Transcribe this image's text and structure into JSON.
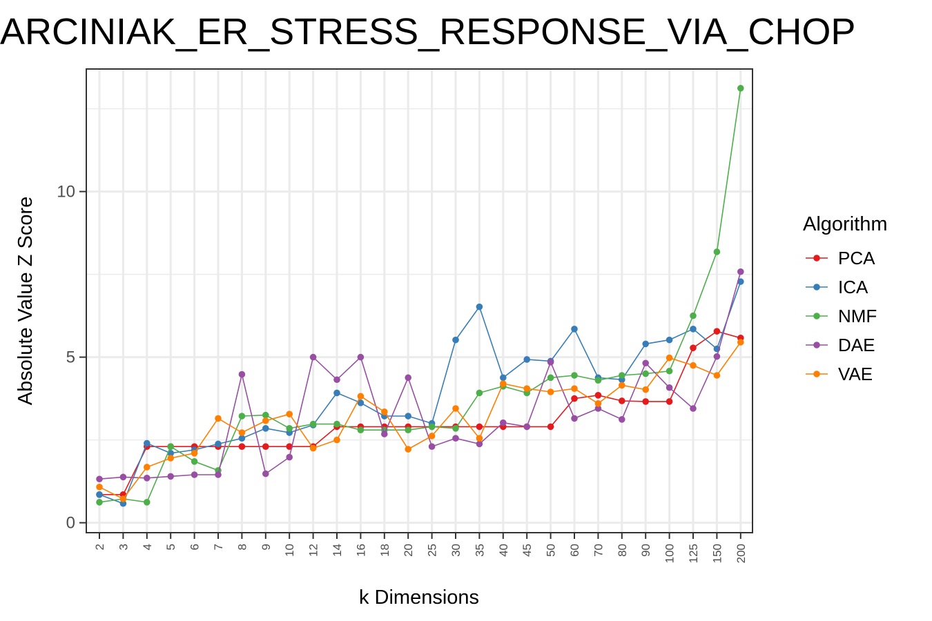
{
  "chart_data": {
    "type": "line",
    "title": "ARCINIAK_ER_STRESS_RESPONSE_VIA_CHOP",
    "xlabel": "k Dimensions",
    "ylabel": "Absolute Value Z Score",
    "categories": [
      "2",
      "3",
      "4",
      "5",
      "6",
      "7",
      "8",
      "9",
      "10",
      "12",
      "14",
      "16",
      "18",
      "20",
      "25",
      "30",
      "35",
      "40",
      "45",
      "50",
      "60",
      "70",
      "80",
      "90",
      "100",
      "125",
      "150",
      "200"
    ],
    "ylim": [
      -0.3,
      13.7
    ],
    "yticks": [
      0,
      5,
      10
    ],
    "grid": true,
    "legend": {
      "title": "Algorithm",
      "position": "right"
    },
    "series": [
      {
        "name": "PCA",
        "color": "#e41a1c",
        "values": [
          0.85,
          0.85,
          2.3,
          2.3,
          2.3,
          2.3,
          2.3,
          2.3,
          2.3,
          2.3,
          2.9,
          2.9,
          2.9,
          2.9,
          2.9,
          2.9,
          2.9,
          2.9,
          2.9,
          2.9,
          3.75,
          3.85,
          3.68,
          3.66,
          3.66,
          5.28,
          5.78,
          5.58
        ]
      },
      {
        "name": "ICA",
        "color": "#377eb8",
        "values": [
          0.85,
          0.58,
          2.4,
          2.1,
          2.2,
          2.38,
          2.55,
          2.85,
          2.72,
          2.95,
          3.92,
          3.62,
          3.22,
          3.22,
          3.0,
          5.52,
          6.52,
          4.38,
          4.93,
          4.88,
          5.85,
          4.38,
          4.32,
          5.4,
          5.52,
          5.85,
          5.25,
          7.28
        ]
      },
      {
        "name": "NMF",
        "color": "#4daf4a",
        "values": [
          0.62,
          0.72,
          0.62,
          2.3,
          1.85,
          1.58,
          3.22,
          3.25,
          2.85,
          2.98,
          2.98,
          2.8,
          2.8,
          2.8,
          2.9,
          2.85,
          3.92,
          4.12,
          3.92,
          4.38,
          4.45,
          4.3,
          4.45,
          4.5,
          4.58,
          6.25,
          8.18,
          13.12
        ]
      },
      {
        "name": "DAE",
        "color": "#984ea3",
        "values": [
          1.32,
          1.38,
          1.35,
          1.4,
          1.45,
          1.45,
          4.48,
          1.48,
          1.98,
          5.0,
          4.32,
          5.0,
          2.68,
          4.38,
          2.3,
          2.55,
          2.38,
          3.02,
          2.9,
          4.85,
          3.15,
          3.45,
          3.12,
          4.82,
          4.08,
          3.45,
          5.02,
          7.58
        ]
      },
      {
        "name": "VAE",
        "color": "#ff7f00",
        "values": [
          1.08,
          0.72,
          1.68,
          1.95,
          2.1,
          3.15,
          2.72,
          3.08,
          3.28,
          2.25,
          2.5,
          3.82,
          3.35,
          2.22,
          2.62,
          3.45,
          2.55,
          4.2,
          4.05,
          3.95,
          4.05,
          3.6,
          4.15,
          4.02,
          4.98,
          4.75,
          4.45,
          5.45
        ]
      }
    ]
  }
}
